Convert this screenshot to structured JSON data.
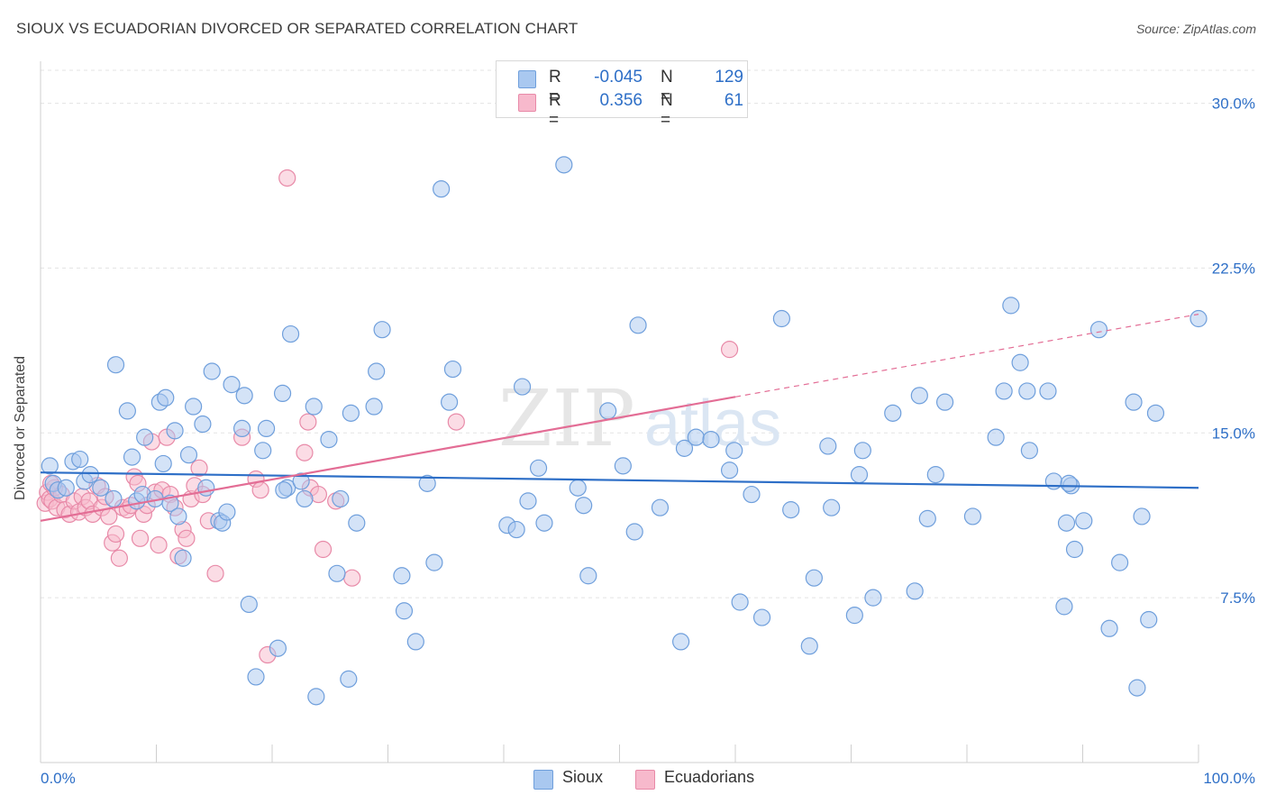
{
  "header": {
    "title": "SIOUX VS ECUADORIAN DIVORCED OR SEPARATED CORRELATION CHART",
    "source": "Source: ZipAtlas.com"
  },
  "colors": {
    "sioux_fill": "#a9c8f0",
    "sioux_stroke": "#6f9fdc",
    "sioux_line": "#2e6fc7",
    "ecuadorian_fill": "#f7b9cc",
    "ecuadorian_stroke": "#e88aa8",
    "ecuadorian_line": "#e36d95",
    "axis_text": "#2e6fc7",
    "grid": "#e3e3e3"
  },
  "legend": {
    "rows": [
      {
        "r_label": "R =",
        "r_value": "-0.045",
        "n_label": "N =",
        "n_value": "129"
      },
      {
        "r_label": "R =",
        "r_value": "0.356",
        "n_label": "N =",
        "n_value": "61"
      }
    ]
  },
  "bottom_legend": {
    "items": [
      "Sioux",
      "Ecuadorians"
    ]
  },
  "watermark": {
    "zip": "ZIP",
    "atlas": "atlas"
  },
  "chart_data": {
    "type": "scatter",
    "title": "SIOUX VS ECUADORIAN DIVORCED OR SEPARATED CORRELATION CHART",
    "xlabel": "",
    "ylabel": "Divorced or Separated",
    "xlim": [
      0,
      100
    ],
    "ylim": [
      0,
      31.5
    ],
    "x_tick_labels": [
      "0.0%",
      "100.0%"
    ],
    "y_ticks": [
      7.5,
      15.0,
      22.5,
      30.0
    ],
    "y_tick_labels": [
      "7.5%",
      "15.0%",
      "22.5%",
      "30.0%"
    ],
    "grid": true,
    "legend_position": "top-center",
    "series": [
      {
        "name": "Sioux",
        "r": -0.045,
        "n": 129,
        "trend": {
          "x": [
            0,
            100
          ],
          "y": [
            13.2,
            12.5
          ],
          "dashed_from": null
        },
        "points": [
          [
            0.8,
            13.5
          ],
          [
            1.1,
            12.7
          ],
          [
            1.5,
            12.4
          ],
          [
            2.2,
            12.5
          ],
          [
            2.8,
            13.7
          ],
          [
            3.4,
            13.8
          ],
          [
            3.8,
            12.8
          ],
          [
            4.3,
            13.1
          ],
          [
            5.2,
            12.5
          ],
          [
            6.3,
            12.0
          ],
          [
            6.5,
            18.1
          ],
          [
            7.5,
            16.0
          ],
          [
            7.9,
            13.9
          ],
          [
            8.3,
            11.9
          ],
          [
            8.8,
            12.2
          ],
          [
            9.0,
            14.8
          ],
          [
            9.9,
            12.0
          ],
          [
            10.3,
            16.4
          ],
          [
            10.6,
            13.6
          ],
          [
            10.8,
            16.6
          ],
          [
            11.2,
            11.8
          ],
          [
            11.6,
            15.1
          ],
          [
            11.9,
            11.2
          ],
          [
            12.3,
            9.3
          ],
          [
            12.8,
            14.0
          ],
          [
            13.2,
            16.2
          ],
          [
            14.0,
            15.4
          ],
          [
            14.3,
            12.5
          ],
          [
            14.8,
            17.8
          ],
          [
            15.4,
            11.0
          ],
          [
            15.7,
            10.9
          ],
          [
            16.1,
            11.4
          ],
          [
            16.5,
            17.2
          ],
          [
            17.4,
            15.2
          ],
          [
            17.6,
            16.7
          ],
          [
            18.0,
            7.2
          ],
          [
            18.6,
            3.9
          ],
          [
            19.2,
            14.2
          ],
          [
            19.5,
            15.2
          ],
          [
            20.5,
            5.2
          ],
          [
            20.9,
            16.8
          ],
          [
            21.3,
            12.5
          ],
          [
            21.6,
            19.5
          ],
          [
            22.5,
            12.8
          ],
          [
            22.8,
            12.0
          ],
          [
            23.6,
            16.2
          ],
          [
            23.8,
            3.0
          ],
          [
            24.9,
            14.7
          ],
          [
            25.6,
            8.6
          ],
          [
            25.9,
            12.0
          ],
          [
            26.6,
            3.8
          ],
          [
            26.8,
            15.9
          ],
          [
            27.3,
            10.9
          ],
          [
            28.8,
            16.2
          ],
          [
            29.0,
            17.8
          ],
          [
            29.5,
            19.7
          ],
          [
            31.2,
            8.5
          ],
          [
            31.4,
            6.9
          ],
          [
            32.4,
            5.5
          ],
          [
            33.4,
            12.7
          ],
          [
            34.0,
            9.1
          ],
          [
            34.6,
            26.1
          ],
          [
            35.3,
            16.4
          ],
          [
            35.6,
            17.9
          ],
          [
            40.3,
            10.8
          ],
          [
            41.1,
            10.6
          ],
          [
            41.6,
            17.1
          ],
          [
            42.1,
            11.9
          ],
          [
            43.0,
            13.4
          ],
          [
            43.5,
            10.9
          ],
          [
            45.2,
            27.2
          ],
          [
            46.4,
            12.5
          ],
          [
            46.9,
            11.7
          ],
          [
            47.3,
            8.5
          ],
          [
            49.0,
            16.0
          ],
          [
            50.3,
            13.5
          ],
          [
            51.3,
            10.5
          ],
          [
            51.6,
            19.9
          ],
          [
            53.5,
            11.6
          ],
          [
            55.3,
            5.5
          ],
          [
            55.6,
            14.3
          ],
          [
            56.6,
            14.8
          ],
          [
            57.9,
            14.7
          ],
          [
            59.5,
            13.3
          ],
          [
            59.9,
            14.2
          ],
          [
            60.4,
            7.3
          ],
          [
            61.4,
            12.2
          ],
          [
            62.3,
            6.6
          ],
          [
            64.0,
            20.2
          ],
          [
            64.8,
            11.5
          ],
          [
            66.4,
            5.3
          ],
          [
            66.8,
            8.4
          ],
          [
            68.0,
            14.4
          ],
          [
            68.3,
            11.6
          ],
          [
            70.3,
            6.7
          ],
          [
            70.7,
            13.1
          ],
          [
            71.0,
            14.2
          ],
          [
            71.9,
            7.5
          ],
          [
            73.6,
            15.9
          ],
          [
            75.5,
            7.8
          ],
          [
            75.9,
            16.7
          ],
          [
            76.6,
            11.1
          ],
          [
            77.3,
            13.1
          ],
          [
            78.1,
            16.4
          ],
          [
            80.5,
            11.2
          ],
          [
            82.5,
            14.8
          ],
          [
            83.2,
            16.9
          ],
          [
            83.8,
            20.8
          ],
          [
            84.6,
            18.2
          ],
          [
            85.2,
            16.9
          ],
          [
            85.4,
            14.2
          ],
          [
            87.0,
            16.9
          ],
          [
            87.5,
            12.8
          ],
          [
            88.4,
            7.1
          ],
          [
            88.6,
            10.9
          ],
          [
            89.0,
            12.6
          ],
          [
            89.3,
            9.7
          ],
          [
            90.1,
            11.0
          ],
          [
            91.4,
            19.7
          ],
          [
            92.3,
            6.1
          ],
          [
            93.2,
            9.1
          ],
          [
            94.4,
            16.4
          ],
          [
            94.7,
            3.4
          ],
          [
            95.1,
            11.2
          ],
          [
            95.7,
            6.5
          ],
          [
            96.3,
            15.9
          ],
          [
            100.0,
            20.2
          ],
          [
            88.8,
            12.7
          ],
          [
            21.0,
            12.4
          ]
        ]
      },
      {
        "name": "Ecuadorians",
        "r": 0.356,
        "n": 61,
        "trend": {
          "x": [
            0,
            100
          ],
          "y": [
            11.0,
            20.4
          ],
          "dashed_from": 60
        },
        "points": [
          [
            0.4,
            11.8
          ],
          [
            0.6,
            12.3
          ],
          [
            0.8,
            12.0
          ],
          [
            1.0,
            11.9
          ],
          [
            1.2,
            12.5
          ],
          [
            1.4,
            11.6
          ],
          [
            1.8,
            12.2
          ],
          [
            2.1,
            11.5
          ],
          [
            2.5,
            11.3
          ],
          [
            2.9,
            11.9
          ],
          [
            3.3,
            11.4
          ],
          [
            3.6,
            12.1
          ],
          [
            3.9,
            11.6
          ],
          [
            4.2,
            11.9
          ],
          [
            4.5,
            11.3
          ],
          [
            4.9,
            12.6
          ],
          [
            5.3,
            11.6
          ],
          [
            5.6,
            12.1
          ],
          [
            5.9,
            11.2
          ],
          [
            6.2,
            10.0
          ],
          [
            6.5,
            10.4
          ],
          [
            6.8,
            9.3
          ],
          [
            7.1,
            11.6
          ],
          [
            7.5,
            11.5
          ],
          [
            7.8,
            11.7
          ],
          [
            8.1,
            13.0
          ],
          [
            8.4,
            12.7
          ],
          [
            8.6,
            10.2
          ],
          [
            8.9,
            11.3
          ],
          [
            9.2,
            11.7
          ],
          [
            9.6,
            14.6
          ],
          [
            9.9,
            12.3
          ],
          [
            10.2,
            9.9
          ],
          [
            10.5,
            12.4
          ],
          [
            10.9,
            14.8
          ],
          [
            11.2,
            12.2
          ],
          [
            11.6,
            11.6
          ],
          [
            11.9,
            9.4
          ],
          [
            12.3,
            10.6
          ],
          [
            12.6,
            10.2
          ],
          [
            13.0,
            12.0
          ],
          [
            13.3,
            12.6
          ],
          [
            13.7,
            13.4
          ],
          [
            14.0,
            12.2
          ],
          [
            14.5,
            11.0
          ],
          [
            15.1,
            8.6
          ],
          [
            17.4,
            14.8
          ],
          [
            18.6,
            12.9
          ],
          [
            19.0,
            12.4
          ],
          [
            19.6,
            4.9
          ],
          [
            21.3,
            26.6
          ],
          [
            22.8,
            14.1
          ],
          [
            23.1,
            15.5
          ],
          [
            23.3,
            12.5
          ],
          [
            24.0,
            12.2
          ],
          [
            24.4,
            9.7
          ],
          [
            25.5,
            11.9
          ],
          [
            26.9,
            8.4
          ],
          [
            35.9,
            15.5
          ],
          [
            59.5,
            18.8
          ],
          [
            0.9,
            12.7
          ]
        ]
      }
    ]
  }
}
